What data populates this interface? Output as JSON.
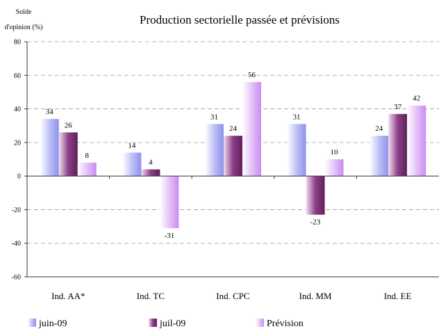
{
  "chart_data": {
    "type": "bar",
    "title": "Production sectorielle passée et prévisions",
    "ylabel_line1": "Solde",
    "ylabel_line2": "d'opinion (%)",
    "ylim": [
      -60,
      80
    ],
    "yticks": [
      -60,
      -40,
      -20,
      0,
      20,
      40,
      60,
      80
    ],
    "grid": true,
    "legend_position": "bottom",
    "categories": [
      "Ind. AA*",
      "Ind. TC",
      "Ind. CPC",
      "Ind. MM",
      "Ind. EE"
    ],
    "series": [
      {
        "name": "juin-09",
        "values": [
          34,
          14,
          31,
          31,
          24
        ],
        "color": "#9a9cf0"
      },
      {
        "name": "juil-09",
        "values": [
          26,
          4,
          24,
          -23,
          37
        ],
        "color": "#7a2f76"
      },
      {
        "name": "Prévision",
        "values": [
          8,
          null,
          56,
          10,
          42
        ],
        "color": "#d6a3f5"
      }
    ],
    "extra_labels": [
      {
        "category_index": 1,
        "series_index": 2,
        "value": -31,
        "text": "-31"
      }
    ]
  }
}
